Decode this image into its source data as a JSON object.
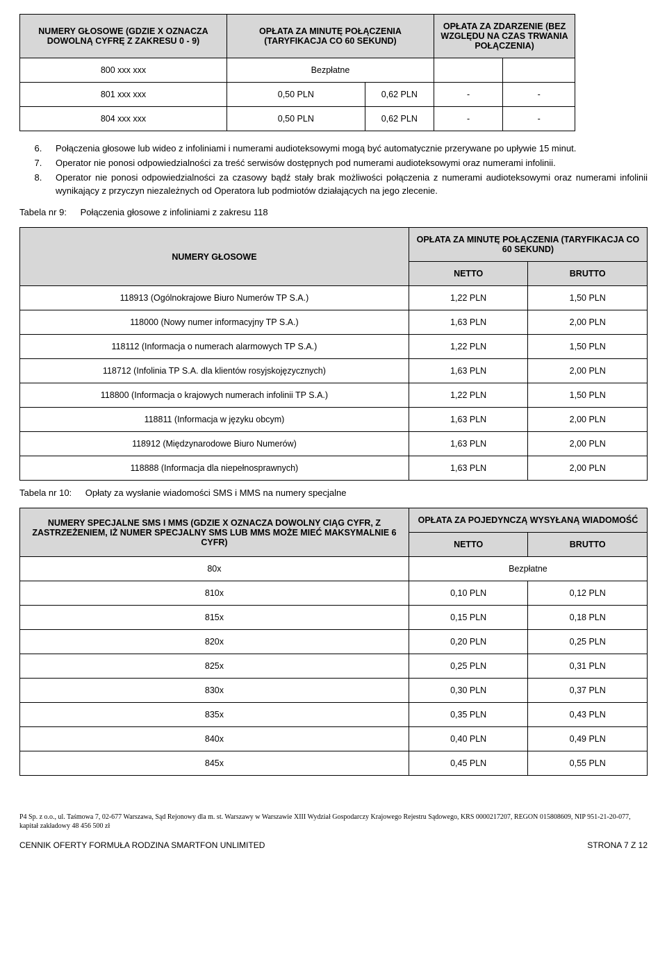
{
  "table8": {
    "headers": {
      "col1": "NUMERY GŁOSOWE\n(GDZIE X OZNACZA DOWOLNĄ CYFRĘ Z ZAKRESU 0 - 9)",
      "col2": "OPŁATA ZA MINUTĘ POŁĄCZENIA (TARYFIKACJA CO 60 SEKUND)",
      "col3": "OPŁATA ZA ZDARZENIE (BEZ WZGLĘDU NA CZAS TRWANIA POŁĄCZENIA)"
    },
    "rows": [
      {
        "num": "800 xxx xxx",
        "min_n": "Bezpłatne",
        "min_b": "",
        "evt_n": "",
        "evt_b": ""
      },
      {
        "num": "801 xxx xxx",
        "min_n": "0,50 PLN",
        "min_b": "0,62 PLN",
        "evt_n": "-",
        "evt_b": "-"
      },
      {
        "num": "804 xxx xxx",
        "min_n": "0,50 PLN",
        "min_b": "0,62 PLN",
        "evt_n": "-",
        "evt_b": "-"
      }
    ]
  },
  "notes": {
    "start": 6,
    "items": [
      "Połączenia głosowe lub wideo z infoliniami i numerami audioteksowymi mogą być automatycznie przerywane po upływie 15 minut.",
      "Operator nie ponosi odpowiedzialności za treść serwisów dostępnych pod numerami audioteksowymi oraz numerami infolinii.",
      "Operator nie ponosi odpowiedzialności za czasowy bądź stały brak możliwości połączenia z numerami audioteksowymi oraz numerami infolinii wynikający z przyczyn niezależnych od Operatora lub podmiotów działających na jego zlecenie."
    ]
  },
  "table9": {
    "caption_num": "Tabela nr 9:",
    "caption": "Połączenia głosowe z infoliniami z zakresu 118",
    "header": {
      "left": "NUMERY GŁOSOWE",
      "right": "OPŁATA ZA MINUTĘ POŁĄCZENIA (TARYFIKACJA CO 60 SEKUND)",
      "netto": "NETTO",
      "brutto": "BRUTTO"
    },
    "rows": [
      {
        "name": "118913 (Ogólnokrajowe Biuro Numerów TP S.A.)",
        "netto": "1,22 PLN",
        "brutto": "1,50 PLN"
      },
      {
        "name": "118000 (Nowy numer informacyjny TP S.A.)",
        "netto": "1,63 PLN",
        "brutto": "2,00 PLN"
      },
      {
        "name": "118112 (Informacja o numerach alarmowych TP S.A.)",
        "netto": "1,22 PLN",
        "brutto": "1,50 PLN"
      },
      {
        "name": "118712 (Infolinia TP S.A. dla klientów rosyjskojęzycznych)",
        "netto": "1,63 PLN",
        "brutto": "2,00 PLN"
      },
      {
        "name": "118800 (Informacja o krajowych numerach infolinii TP S.A.)",
        "netto": "1,22 PLN",
        "brutto": "1,50 PLN"
      },
      {
        "name": "118811 (Informacja w języku obcym)",
        "netto": "1,63 PLN",
        "brutto": "2,00 PLN"
      },
      {
        "name": "118912 (Międzynarodowe Biuro Numerów)",
        "netto": "1,63 PLN",
        "brutto": "2,00 PLN"
      },
      {
        "name": "118888 (Informacja dla niepełnosprawnych)",
        "netto": "1,63 PLN",
        "brutto": "2,00 PLN"
      }
    ]
  },
  "table10": {
    "caption_num": "Tabela nr 10:",
    "caption": "Opłaty za wysłanie wiadomości SMS i MMS na numery specjalne",
    "header": {
      "left": "NUMERY SPECJALNE SMS I MMS (GDZIE X OZNACZA DOWOLNY CIĄG CYFR, Z ZASTRZEŻENIEM, IŻ NUMER SPECJALNY SMS LUB MMS MOŻE MIEĆ MAKSYMALNIE 6 CYFR)",
      "right": "OPŁATA\nZA POJEDYNCZĄ WYSYŁANĄ WIADOMOŚĆ",
      "netto": "NETTO",
      "brutto": "BRUTTO"
    },
    "rows": [
      {
        "name": "80x",
        "merged": "Bezpłatne"
      },
      {
        "name": "810x",
        "netto": "0,10 PLN",
        "brutto": "0,12 PLN"
      },
      {
        "name": "815x",
        "netto": "0,15 PLN",
        "brutto": "0,18 PLN"
      },
      {
        "name": "820x",
        "netto": "0,20 PLN",
        "brutto": "0,25 PLN"
      },
      {
        "name": "825x",
        "netto": "0,25 PLN",
        "brutto": "0,31 PLN"
      },
      {
        "name": "830x",
        "netto": "0,30 PLN",
        "brutto": "0,37 PLN"
      },
      {
        "name": "835x",
        "netto": "0,35 PLN",
        "brutto": "0,43 PLN"
      },
      {
        "name": "840x",
        "netto": "0,40 PLN",
        "brutto": "0,49 PLN"
      },
      {
        "name": "845x",
        "netto": "0,45 PLN",
        "brutto": "0,55 PLN"
      }
    ]
  },
  "footer": {
    "legal": "P4 Sp. z o.o., ul. Taśmowa 7, 02-677 Warszawa, Sąd Rejonowy dla m. st. Warszawy w Warszawie XIII Wydział Gospodarczy Krajowego Rejestru Sądowego, KRS 0000217207, REGON 015808609, NIP 951-21-20-077, kapitał zakładowy 48 456 500 zł",
    "doc_title": "CENNIK OFERTY FORMUŁA RODZINA SMARTFON UNLIMITED",
    "page": "STRONA 7 Z 12"
  },
  "colors": {
    "header_bg": "#d7d7d7",
    "border": "#000000",
    "text": "#000000",
    "background": "#ffffff"
  }
}
